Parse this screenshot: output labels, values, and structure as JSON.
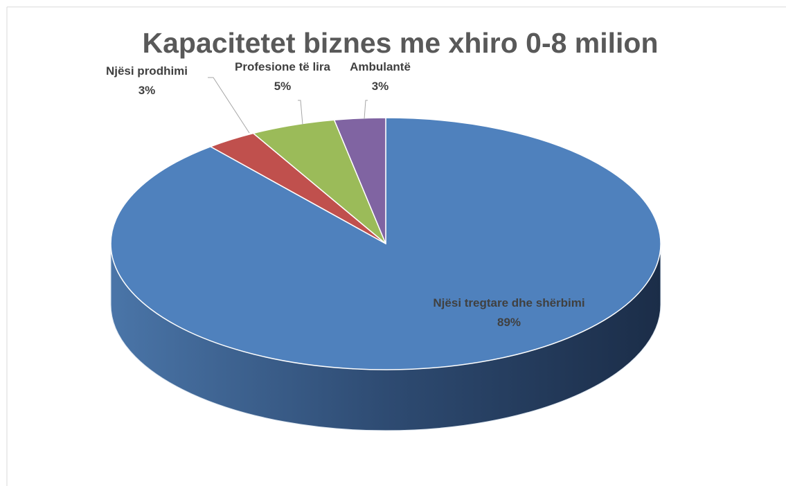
{
  "chart_data": {
    "type": "pie",
    "title": "Kapacitetet biznes me xhiro 0-8 milion",
    "categories": [
      "Njësi tregtare dhe shërbimi",
      "Njësi prodhimi",
      "Profesione të lira",
      "Ambulantë"
    ],
    "values": [
      89,
      3,
      5,
      3
    ],
    "value_labels": [
      "89%",
      "3%",
      "5%",
      "3%"
    ],
    "colors": [
      "#4f81bd",
      "#c0504d",
      "#9bbb59",
      "#8064a2"
    ]
  }
}
